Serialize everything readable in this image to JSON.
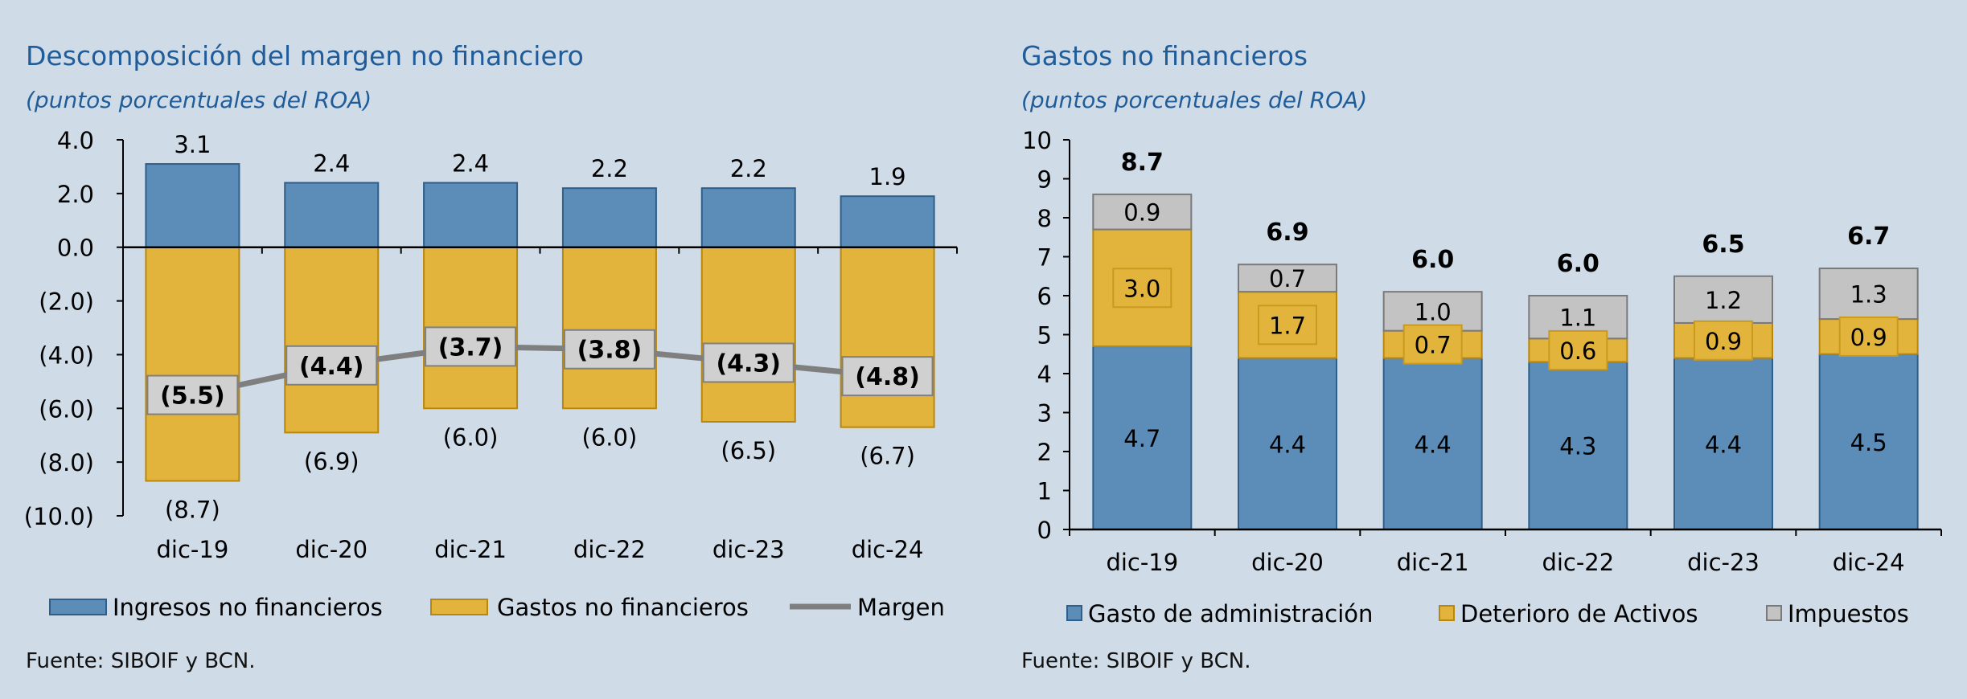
{
  "left": {
    "title": "Descomposición del margen no financiero",
    "subtitle": "(puntos porcentuales del ROA)",
    "source": "Fuente: SIBOIF y BCN.",
    "legend": [
      "Ingresos no financieros",
      "Gastos no financieros",
      "Margen"
    ],
    "y_tick_labels": [
      "4.0",
      "2.0",
      "0.0",
      "(2.0)",
      "(4.0)",
      "(6.0)",
      "(8.0)",
      "(10.0)"
    ],
    "ingresos_labels": [
      "3.1",
      "2.4",
      "2.4",
      "2.2",
      "2.2",
      "1.9"
    ],
    "gastos_labels": [
      "(8.7)",
      "(6.9)",
      "(6.0)",
      "(6.0)",
      "(6.5)",
      "(6.7)"
    ],
    "margen_labels": [
      "(5.5)",
      "(4.4)",
      "(3.7)",
      "(3.8)",
      "(4.3)",
      "(4.8)"
    ]
  },
  "right": {
    "title": "Gastos no financieros",
    "subtitle": "(puntos porcentuales del ROA)",
    "source": "Fuente: SIBOIF y BCN.",
    "legend": [
      "Gasto de administración",
      "Deterioro de Activos",
      "Impuestos"
    ],
    "y_tick_labels": [
      "0",
      "1",
      "2",
      "3",
      "4",
      "5",
      "6",
      "7",
      "8",
      "9",
      "10"
    ],
    "total_labels": [
      "8.7",
      "6.9",
      "6.0",
      "6.0",
      "6.5",
      "6.7"
    ],
    "admin_labels": [
      "4.7",
      "4.4",
      "4.4",
      "4.3",
      "4.4",
      "4.5"
    ],
    "deterioro_labels": [
      "3.0",
      "1.7",
      "0.7",
      "0.6",
      "0.9",
      "0.9"
    ],
    "impuestos_labels": [
      "0.9",
      "0.7",
      "1.0",
      "1.1",
      "1.2",
      "1.3"
    ]
  },
  "colors": {
    "blue": "#5b8db8",
    "blue_edge": "#2e5f8a",
    "gold": "#e3b43c",
    "gold_edge": "#b8870f",
    "gray": "#c3c3c3",
    "gray_edge": "#7a7a7a",
    "line": "#7f7f7f"
  },
  "chart_data": [
    {
      "type": "bar",
      "title": "Descomposición del margen no financiero",
      "subtitle": "(puntos porcentuales del ROA)",
      "categories": [
        "dic-19",
        "dic-20",
        "dic-21",
        "dic-22",
        "dic-23",
        "dic-24"
      ],
      "series": [
        {
          "name": "Ingresos no financieros",
          "type": "bar",
          "values": [
            3.1,
            2.4,
            2.4,
            2.2,
            2.2,
            1.9
          ]
        },
        {
          "name": "Gastos no financieros",
          "type": "bar",
          "values": [
            -8.7,
            -6.9,
            -6.0,
            -6.0,
            -6.5,
            -6.7
          ]
        },
        {
          "name": "Margen",
          "type": "line",
          "values": [
            -5.5,
            -4.4,
            -3.7,
            -3.8,
            -4.3,
            -4.8
          ]
        }
      ],
      "ylim": [
        -10,
        4
      ],
      "yticks": [
        4,
        2,
        0,
        -2,
        -4,
        -6,
        -8,
        -10
      ],
      "grid": false,
      "legend": "bottom"
    },
    {
      "type": "bar",
      "stacked": true,
      "title": "Gastos no financieros",
      "subtitle": "(puntos porcentuales del ROA)",
      "categories": [
        "dic-19",
        "dic-20",
        "dic-21",
        "dic-22",
        "dic-23",
        "dic-24"
      ],
      "series": [
        {
          "name": "Gasto de administración",
          "values": [
            4.7,
            4.4,
            4.4,
            4.3,
            4.4,
            4.5
          ]
        },
        {
          "name": "Deterioro de Activos",
          "values": [
            3.0,
            1.7,
            0.7,
            0.6,
            0.9,
            0.9
          ]
        },
        {
          "name": "Impuestos",
          "values": [
            0.9,
            0.7,
            1.0,
            1.1,
            1.2,
            1.3
          ]
        }
      ],
      "totals": [
        8.7,
        6.9,
        6.0,
        6.0,
        6.5,
        6.7
      ],
      "ylim": [
        0,
        10
      ],
      "yticks": [
        0,
        1,
        2,
        3,
        4,
        5,
        6,
        7,
        8,
        9,
        10
      ],
      "grid": false,
      "legend": "bottom"
    }
  ]
}
